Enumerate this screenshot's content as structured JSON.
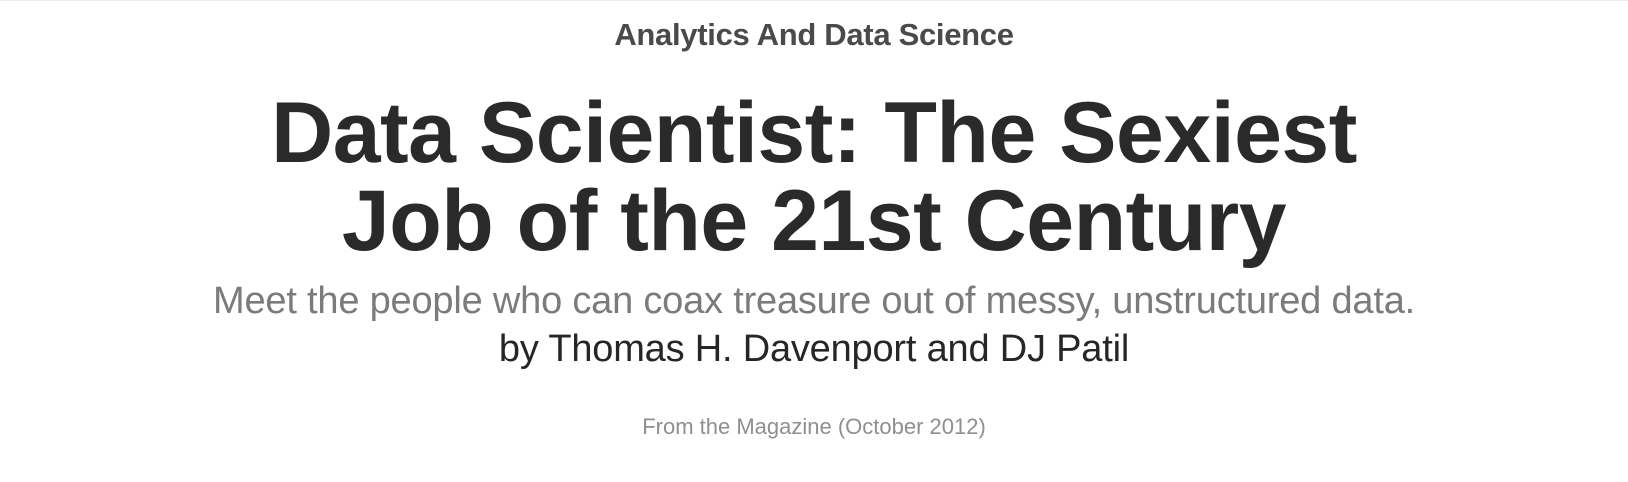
{
  "article": {
    "topic": "Analytics And Data Science",
    "title": "Data Scientist: The Sexiest Job of the 21st Century",
    "dek": "Meet the people who can coax treasure out of messy, unstructured data.",
    "byline_prefix": "by",
    "authors": [
      "Thomas H. Davenport",
      "DJ Patil"
    ],
    "author_separator": "and",
    "source": "From the Magazine (October 2012)"
  },
  "colors": {
    "title": "#2a2a2a",
    "topic": "#4a4a4a",
    "dek": "#7b7b7b",
    "source": "#8f8f8f"
  }
}
